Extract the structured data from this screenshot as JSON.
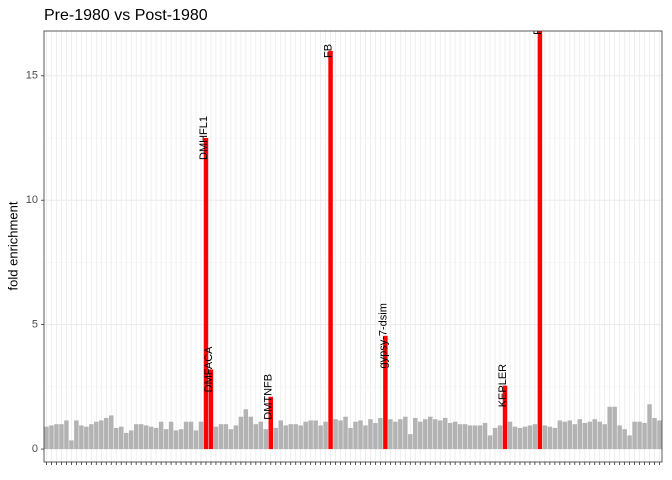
{
  "chart_data": {
    "type": "bar",
    "title": "Pre-1980 vs Post-1980",
    "y_label": "fold enrichment",
    "color": "#b3b3b3",
    "highlight_color": "#ff0000",
    "ylim": [
      -0.52,
      16.8
    ],
    "yticks": [
      0,
      5,
      10,
      15
    ],
    "yminor": [
      2.5,
      7.5,
      12.5
    ],
    "grid": true,
    "categories": [
      null,
      null,
      null,
      null,
      null,
      null,
      null,
      null,
      null,
      null,
      null,
      null,
      null,
      null,
      null,
      null,
      null,
      null,
      null,
      null,
      null,
      null,
      null,
      null,
      null,
      null,
      null,
      null,
      null,
      null,
      null,
      null,
      null,
      null,
      null,
      null,
      null,
      null,
      null,
      null,
      null,
      null,
      null,
      null,
      null,
      null,
      null,
      null,
      null,
      null,
      null,
      null,
      null,
      null,
      null,
      null,
      null,
      null,
      null,
      null,
      null,
      null,
      null,
      null,
      null,
      null,
      null,
      null,
      null,
      null,
      null,
      null,
      null,
      null,
      null,
      null,
      null,
      null,
      null,
      null,
      null,
      null,
      null,
      null,
      null,
      null,
      null,
      null,
      null,
      null,
      null,
      null,
      null,
      null,
      null,
      null,
      null,
      null,
      null,
      null,
      null,
      null,
      null,
      null,
      null,
      null,
      null,
      null,
      null,
      null,
      null,
      null,
      null,
      null,
      null,
      null,
      null,
      null,
      null,
      null,
      null,
      null,
      null,
      null
    ],
    "values": [
      0.9,
      0.95,
      1.0,
      1.0,
      1.15,
      0.35,
      1.15,
      0.95,
      0.9,
      1.0,
      1.1,
      1.15,
      1.25,
      1.35,
      0.85,
      0.9,
      0.65,
      0.75,
      1.0,
      1.0,
      0.95,
      0.9,
      0.85,
      1.1,
      0.8,
      1.1,
      0.75,
      0.8,
      1.1,
      1.1,
      0.75,
      1.1,
      12.5,
      3.2,
      0.9,
      1.0,
      1.0,
      0.8,
      0.95,
      1.3,
      1.6,
      1.3,
      1.0,
      1.1,
      0.8,
      2.1,
      0.85,
      1.15,
      0.95,
      1.0,
      1.0,
      0.95,
      1.1,
      1.15,
      1.15,
      0.95,
      1.1,
      16.0,
      1.2,
      1.15,
      1.3,
      0.85,
      1.1,
      1.15,
      0.95,
      1.2,
      1.05,
      1.25,
      4.55,
      1.2,
      1.1,
      1.2,
      1.3,
      0.6,
      1.25,
      1.1,
      1.2,
      1.3,
      1.2,
      1.15,
      1.25,
      1.05,
      1.1,
      1.0,
      1.0,
      0.95,
      0.95,
      0.95,
      1.05,
      0.55,
      0.85,
      0.95,
      2.55,
      1.1,
      0.9,
      0.85,
      0.9,
      0.95,
      1.0,
      17.0,
      0.95,
      0.9,
      0.85,
      1.15,
      1.1,
      1.15,
      1.0,
      1.2,
      1.05,
      1.1,
      1.2,
      1.1,
      1.0,
      1.7,
      1.7,
      0.95,
      0.8,
      0.55,
      1.1,
      1.1,
      1.05,
      1.8,
      1.25,
      1.15
    ],
    "labels": [
      null,
      null,
      null,
      null,
      null,
      null,
      null,
      null,
      null,
      null,
      null,
      null,
      null,
      null,
      null,
      null,
      null,
      null,
      null,
      null,
      null,
      null,
      null,
      null,
      null,
      null,
      null,
      null,
      null,
      null,
      null,
      null,
      "DMHFL1",
      "DMFACA",
      null,
      null,
      null,
      null,
      null,
      null,
      null,
      null,
      null,
      null,
      null,
      "DMTNFB",
      null,
      null,
      null,
      null,
      null,
      null,
      null,
      null,
      null,
      null,
      null,
      "FB",
      null,
      null,
      null,
      null,
      null,
      null,
      null,
      null,
      null,
      null,
      "gypsy-7-dsim",
      null,
      null,
      null,
      null,
      null,
      null,
      null,
      null,
      null,
      null,
      null,
      null,
      null,
      null,
      null,
      null,
      null,
      null,
      null,
      null,
      null,
      null,
      null,
      "KEPLER",
      null,
      null,
      null,
      null,
      null,
      null,
      "PPI",
      null,
      null,
      null,
      null,
      null,
      null,
      null,
      null,
      null,
      null,
      null,
      null,
      null,
      null,
      null,
      null,
      null,
      null,
      null,
      null,
      null,
      null,
      null,
      null
    ]
  }
}
